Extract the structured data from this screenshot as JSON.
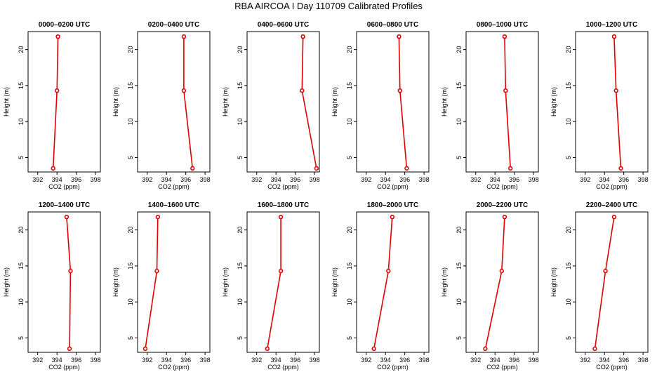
{
  "title": "RBA AIRCOA I  Day 110709  Calibrated Profiles",
  "chart_data": [
    {
      "type": "line",
      "title": "0000–0200 UTC",
      "xlabel": "CO2 (ppm)",
      "ylabel": "Height (m)",
      "xlim": [
        391,
        398.5
      ],
      "ylim": [
        3,
        22.5
      ],
      "x_ticks": [
        "392",
        "394",
        "396",
        "398"
      ],
      "y_ticks": [
        "5",
        "10",
        "15",
        "20"
      ],
      "series": [
        {
          "name": "profile",
          "x": [
            393.6,
            394.0,
            394.1
          ],
          "y": [
            3.5,
            14.3,
            21.8
          ]
        }
      ],
      "color": "#e00000"
    },
    {
      "type": "line",
      "title": "0200–0400 UTC",
      "xlabel": "CO2 (ppm)",
      "ylabel": "Height (m)",
      "xlim": [
        391,
        398.5
      ],
      "ylim": [
        3,
        22.5
      ],
      "x_ticks": [
        "392",
        "394",
        "396",
        "398"
      ],
      "y_ticks": [
        "5",
        "10",
        "15",
        "20"
      ],
      "series": [
        {
          "name": "profile",
          "x": [
            396.7,
            395.8,
            395.8
          ],
          "y": [
            3.5,
            14.3,
            21.8
          ]
        }
      ],
      "color": "#e00000"
    },
    {
      "type": "line",
      "title": "0400–0600 UTC",
      "xlabel": "CO2 (ppm)",
      "ylabel": "Height (m)",
      "xlim": [
        391,
        398.5
      ],
      "ylim": [
        3,
        22.5
      ],
      "x_ticks": [
        "392",
        "394",
        "396",
        "398"
      ],
      "y_ticks": [
        "5",
        "10",
        "15",
        "20"
      ],
      "series": [
        {
          "name": "profile",
          "x": [
            398.2,
            396.7,
            396.8
          ],
          "y": [
            3.5,
            14.3,
            21.8
          ]
        }
      ],
      "color": "#e00000"
    },
    {
      "type": "line",
      "title": "0600–0800 UTC",
      "xlabel": "CO2 (ppm)",
      "ylabel": "Height (m)",
      "xlim": [
        391,
        398.5
      ],
      "ylim": [
        3,
        22.5
      ],
      "x_ticks": [
        "392",
        "394",
        "396",
        "398"
      ],
      "y_ticks": [
        "5",
        "10",
        "15",
        "20"
      ],
      "series": [
        {
          "name": "profile",
          "x": [
            396.2,
            395.5,
            395.4
          ],
          "y": [
            3.5,
            14.3,
            21.8
          ]
        }
      ],
      "color": "#e00000"
    },
    {
      "type": "line",
      "title": "0800–1000 UTC",
      "xlabel": "CO2 (ppm)",
      "ylabel": "Height (m)",
      "xlim": [
        391,
        398.5
      ],
      "ylim": [
        3,
        22.5
      ],
      "x_ticks": [
        "392",
        "394",
        "396",
        "398"
      ],
      "y_ticks": [
        "5",
        "10",
        "15",
        "20"
      ],
      "series": [
        {
          "name": "profile",
          "x": [
            395.6,
            395.1,
            395.0
          ],
          "y": [
            3.5,
            14.3,
            21.8
          ]
        }
      ],
      "color": "#e00000"
    },
    {
      "type": "line",
      "title": "1000–1200 UTC",
      "xlabel": "CO2 (ppm)",
      "ylabel": "Height (m)",
      "xlim": [
        391,
        398.5
      ],
      "ylim": [
        3,
        22.5
      ],
      "x_ticks": [
        "392",
        "394",
        "396",
        "398"
      ],
      "y_ticks": [
        "5",
        "10",
        "15",
        "20"
      ],
      "series": [
        {
          "name": "profile",
          "x": [
            395.7,
            395.2,
            395.0
          ],
          "y": [
            3.5,
            14.3,
            21.8
          ]
        }
      ],
      "color": "#e00000"
    },
    {
      "type": "line",
      "title": "1200–1400 UTC",
      "xlabel": "CO2 (ppm)",
      "ylabel": "Height (m)",
      "xlim": [
        391,
        398.5
      ],
      "ylim": [
        3,
        22.5
      ],
      "x_ticks": [
        "392",
        "394",
        "396",
        "398"
      ],
      "y_ticks": [
        "5",
        "10",
        "15",
        "20"
      ],
      "series": [
        {
          "name": "profile",
          "x": [
            395.3,
            395.4,
            395.0
          ],
          "y": [
            3.5,
            14.3,
            21.8
          ]
        }
      ],
      "color": "#e00000"
    },
    {
      "type": "line",
      "title": "1400–1600 UTC",
      "xlabel": "CO2 (ppm)",
      "ylabel": "Height (m)",
      "xlim": [
        391,
        398.5
      ],
      "ylim": [
        3,
        22.5
      ],
      "x_ticks": [
        "392",
        "394",
        "396",
        "398"
      ],
      "y_ticks": [
        "5",
        "10",
        "15",
        "20"
      ],
      "series": [
        {
          "name": "profile",
          "x": [
            391.8,
            393.0,
            393.1
          ],
          "y": [
            3.5,
            14.3,
            21.8
          ]
        }
      ],
      "color": "#e00000"
    },
    {
      "type": "line",
      "title": "1600–1800 UTC",
      "xlabel": "CO2 (ppm)",
      "ylabel": "Height (m)",
      "xlim": [
        391,
        398.5
      ],
      "ylim": [
        3,
        22.5
      ],
      "x_ticks": [
        "392",
        "394",
        "396",
        "398"
      ],
      "y_ticks": [
        "5",
        "10",
        "15",
        "20"
      ],
      "series": [
        {
          "name": "profile",
          "x": [
            393.1,
            394.5,
            394.5
          ],
          "y": [
            3.5,
            14.3,
            21.8
          ]
        }
      ],
      "color": "#e00000"
    },
    {
      "type": "line",
      "title": "1800–2000 UTC",
      "xlabel": "CO2 (ppm)",
      "ylabel": "Height (m)",
      "xlim": [
        391,
        398.5
      ],
      "ylim": [
        3,
        22.5
      ],
      "x_ticks": [
        "392",
        "394",
        "396",
        "398"
      ],
      "y_ticks": [
        "5",
        "10",
        "15",
        "20"
      ],
      "series": [
        {
          "name": "profile",
          "x": [
            392.8,
            394.3,
            394.7
          ],
          "y": [
            3.5,
            14.3,
            21.8
          ]
        }
      ],
      "color": "#e00000"
    },
    {
      "type": "line",
      "title": "2000–2200 UTC",
      "xlabel": "CO2 (ppm)",
      "ylabel": "Height (m)",
      "xlim": [
        391,
        398.5
      ],
      "ylim": [
        3,
        22.5
      ],
      "x_ticks": [
        "392",
        "394",
        "396",
        "398"
      ],
      "y_ticks": [
        "5",
        "10",
        "15",
        "20"
      ],
      "series": [
        {
          "name": "profile",
          "x": [
            393.0,
            394.7,
            395.0
          ],
          "y": [
            3.5,
            14.3,
            21.8
          ]
        }
      ],
      "color": "#e00000"
    },
    {
      "type": "line",
      "title": "2200–2400 UTC",
      "xlabel": "CO2 (ppm)",
      "ylabel": "Height (m)",
      "xlim": [
        391,
        398.5
      ],
      "ylim": [
        3,
        22.5
      ],
      "x_ticks": [
        "392",
        "394",
        "396",
        "398"
      ],
      "y_ticks": [
        "5",
        "10",
        "15",
        "20"
      ],
      "series": [
        {
          "name": "profile",
          "x": [
            393.0,
            394.1,
            395.0
          ],
          "y": [
            3.5,
            14.3,
            21.8
          ]
        }
      ],
      "color": "#e00000"
    }
  ]
}
